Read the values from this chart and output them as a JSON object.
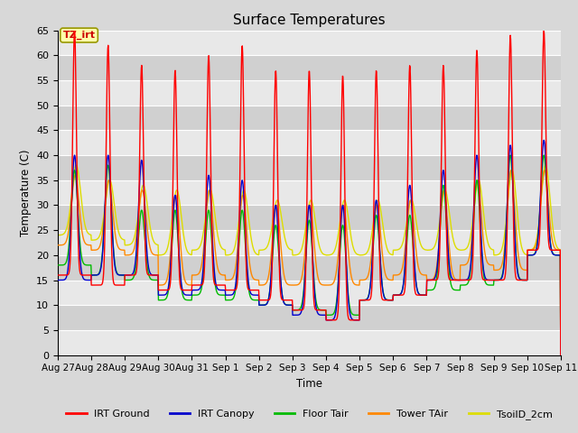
{
  "title": "Surface Temperatures",
  "xlabel": "Time",
  "ylabel": "Temperature (C)",
  "ylim": [
    0,
    65
  ],
  "yticks": [
    0,
    5,
    10,
    15,
    20,
    25,
    30,
    35,
    40,
    45,
    50,
    55,
    60,
    65
  ],
  "x_labels": [
    "Aug 27",
    "Aug 28",
    "Aug 29",
    "Aug 30",
    "Aug 31",
    "Sep 1",
    "Sep 2",
    "Sep 3",
    "Sep 4",
    "Sep 5",
    "Sep 6",
    "Sep 7",
    "Sep 8",
    "Sep 9",
    "Sep 10",
    "Sep 11"
  ],
  "series_colors": {
    "IRT Ground": "#ff0000",
    "IRT Canopy": "#0000cc",
    "Floor Tair": "#00bb00",
    "Tower TAir": "#ff8800",
    "TsoilD_2cm": "#dddd00"
  },
  "annotation_text": "TZ_irt",
  "bg_color": "#d8d8d8",
  "plot_bg_light": "#e8e8e8",
  "plot_bg_dark": "#d0d0d0",
  "grid_color": "#ffffff",
  "n_days": 15,
  "pts_per_day": 96,
  "irt_ground_peaks": [
    65,
    62,
    58,
    57,
    60,
    62,
    57,
    57,
    56,
    57,
    58,
    58,
    61,
    64,
    65
  ],
  "irt_ground_troughs": [
    16,
    14,
    16,
    13,
    14,
    13,
    11,
    9,
    7,
    11,
    12,
    15,
    15,
    15,
    21
  ],
  "canopy_peaks": [
    40,
    40,
    39,
    32,
    36,
    35,
    30,
    30,
    30,
    31,
    34,
    37,
    40,
    42,
    43
  ],
  "canopy_troughs": [
    15,
    16,
    16,
    12,
    13,
    12,
    10,
    8,
    7,
    11,
    12,
    15,
    15,
    15,
    20
  ],
  "floor_peaks": [
    37,
    38,
    29,
    29,
    29,
    29,
    26,
    27,
    26,
    28,
    28,
    34,
    35,
    40,
    40
  ],
  "floor_troughs": [
    18,
    16,
    15,
    11,
    12,
    11,
    10,
    9,
    8,
    11,
    12,
    13,
    14,
    15,
    20
  ],
  "tower_peaks": [
    36,
    35,
    33,
    32,
    33,
    32,
    30,
    30,
    30,
    30,
    31,
    33,
    35,
    37,
    37
  ],
  "tower_troughs": [
    22,
    21,
    20,
    14,
    16,
    15,
    14,
    14,
    14,
    15,
    16,
    15,
    18,
    17,
    21
  ],
  "tsoil_peaks": [
    38,
    35,
    34,
    33,
    33,
    33,
    31,
    31,
    31,
    31,
    31,
    33,
    35,
    37,
    38
  ],
  "tsoil_troughs": [
    24,
    23,
    22,
    20,
    21,
    20,
    21,
    20,
    20,
    20,
    21,
    21,
    21,
    20,
    21
  ]
}
